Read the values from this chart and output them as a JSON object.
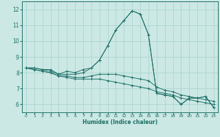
{
  "title": "",
  "xlabel": "Humidex (Indice chaleur)",
  "background_color": "#cce8e4",
  "grid_color": "#aad4d0",
  "line_color": "#1a6e66",
  "xlim": [
    -0.5,
    23.5
  ],
  "ylim": [
    5.5,
    12.5
  ],
  "yticks": [
    6,
    7,
    8,
    9,
    10,
    11,
    12
  ],
  "xticks": [
    0,
    1,
    2,
    3,
    4,
    5,
    6,
    7,
    8,
    9,
    10,
    11,
    12,
    13,
    14,
    15,
    16,
    17,
    18,
    19,
    20,
    21,
    22,
    23
  ],
  "series": [
    [
      8.3,
      8.3,
      8.2,
      8.2,
      7.9,
      8.1,
      8.0,
      8.2,
      8.3,
      8.8,
      9.7,
      10.7,
      11.3,
      11.9,
      11.7,
      10.4,
      6.7,
      6.6,
      6.5,
      6.0,
      6.4,
      6.4,
      6.5,
      5.8
    ],
    [
      8.3,
      8.3,
      8.2,
      8.1,
      7.9,
      7.9,
      7.9,
      8.0,
      8.3,
      8.8,
      9.7,
      10.7,
      11.3,
      11.9,
      11.7,
      10.4,
      6.7,
      6.6,
      6.5,
      6.0,
      6.4,
      6.4,
      6.5,
      5.8
    ],
    [
      8.3,
      8.2,
      8.1,
      8.0,
      7.8,
      7.8,
      7.7,
      7.7,
      7.8,
      7.9,
      7.9,
      7.9,
      7.8,
      7.7,
      7.6,
      7.5,
      7.1,
      6.9,
      6.8,
      6.6,
      6.5,
      6.4,
      6.3,
      6.2
    ],
    [
      8.3,
      8.2,
      8.1,
      8.0,
      7.8,
      7.7,
      7.6,
      7.6,
      7.6,
      7.6,
      7.5,
      7.4,
      7.3,
      7.2,
      7.1,
      7.0,
      6.8,
      6.7,
      6.6,
      6.4,
      6.3,
      6.2,
      6.1,
      6.0
    ]
  ]
}
